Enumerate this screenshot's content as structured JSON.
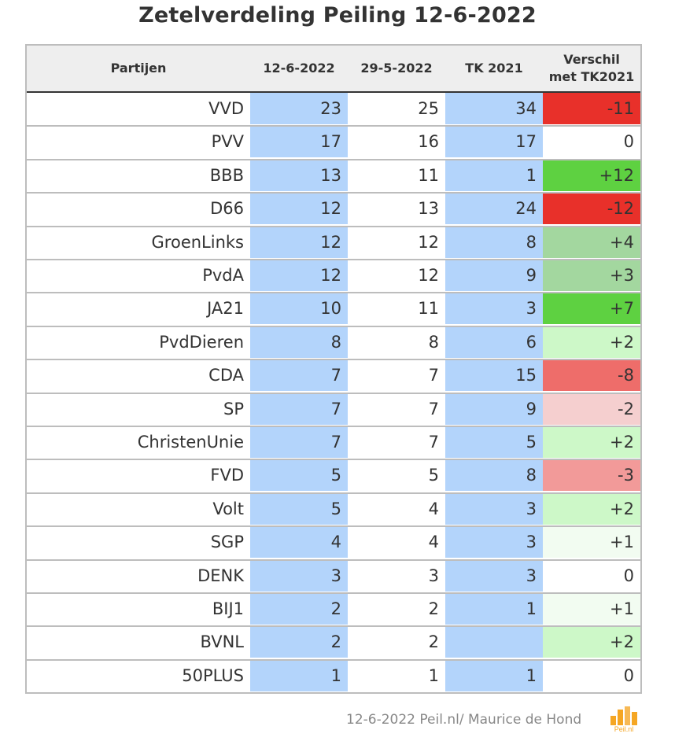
{
  "title": "Zetelverdeling Peiling 12-6-2022",
  "footer": "12-6-2022 Peil.nl/ Maurice de Hond",
  "logo": {
    "icon": "peil-nl-logo-icon",
    "text": "Peil.nl"
  },
  "colors": {
    "highlight_blue": "#b3d4fb",
    "header_bg": "#eeeeee",
    "diff_strong_red": "#e8302a",
    "diff_red": "#ee6d6a",
    "diff_mid_red": "#f29a99",
    "diff_light_red": "#f5cfcf",
    "diff_strong_green": "#5ed141",
    "diff_mid_green": "#a3d79f",
    "diff_light_green": "#cdf8c8",
    "diff_pale_green": "#f2fcf1",
    "diff_neutral": "#ffffff"
  },
  "chart_data": {
    "type": "table",
    "title": "Zetelverdeling Peiling 12-6-2022",
    "headers": {
      "party": "Partijen",
      "col1": "12-6-2022",
      "col2": "29-5-2022",
      "col3": "TK 2021",
      "diff_line1": "Verschil",
      "diff_line2": "met TK2021"
    },
    "rows": [
      {
        "party": "VVD",
        "p1": "23",
        "p2": "25",
        "tk": "34",
        "diff": "-11",
        "diff_color": "#e8302a"
      },
      {
        "party": "PVV",
        "p1": "17",
        "p2": "16",
        "tk": "17",
        "diff": "0",
        "diff_color": "#ffffff"
      },
      {
        "party": "BBB",
        "p1": "13",
        "p2": "11",
        "tk": "1",
        "diff": "+12",
        "diff_color": "#5ed141"
      },
      {
        "party": "D66",
        "p1": "12",
        "p2": "13",
        "tk": "24",
        "diff": "-12",
        "diff_color": "#e8302a"
      },
      {
        "party": "GroenLinks",
        "p1": "12",
        "p2": "12",
        "tk": "8",
        "diff": "+4",
        "diff_color": "#a3d79f"
      },
      {
        "party": "PvdA",
        "p1": "12",
        "p2": "12",
        "tk": "9",
        "diff": "+3",
        "diff_color": "#a3d79f"
      },
      {
        "party": "JA21",
        "p1": "10",
        "p2": "11",
        "tk": "3",
        "diff": "+7",
        "diff_color": "#5ed141"
      },
      {
        "party": "PvdDieren",
        "p1": "8",
        "p2": "8",
        "tk": "6",
        "diff": "+2",
        "diff_color": "#cdf8c8"
      },
      {
        "party": "CDA",
        "p1": "7",
        "p2": "7",
        "tk": "15",
        "diff": "-8",
        "diff_color": "#ee6d6a"
      },
      {
        "party": "SP",
        "p1": "7",
        "p2": "7",
        "tk": "9",
        "diff": "-2",
        "diff_color": "#f5cfcf"
      },
      {
        "party": "ChristenUnie",
        "p1": "7",
        "p2": "7",
        "tk": "5",
        "diff": "+2",
        "diff_color": "#cdf8c8"
      },
      {
        "party": "FVD",
        "p1": "5",
        "p2": "5",
        "tk": "8",
        "diff": "-3",
        "diff_color": "#f29a99"
      },
      {
        "party": "Volt",
        "p1": "5",
        "p2": "4",
        "tk": "3",
        "diff": "+2",
        "diff_color": "#cdf8c8"
      },
      {
        "party": "SGP",
        "p1": "4",
        "p2": "4",
        "tk": "3",
        "diff": "+1",
        "diff_color": "#f2fcf1"
      },
      {
        "party": "DENK",
        "p1": "3",
        "p2": "3",
        "tk": "3",
        "diff": "0",
        "diff_color": "#ffffff"
      },
      {
        "party": "BIJ1",
        "p1": "2",
        "p2": "2",
        "tk": "1",
        "diff": "+1",
        "diff_color": "#f2fcf1"
      },
      {
        "party": "BVNL",
        "p1": "2",
        "p2": "2",
        "tk": "",
        "diff": "+2",
        "diff_color": "#cdf8c8"
      },
      {
        "party": "50PLUS",
        "p1": "1",
        "p2": "1",
        "tk": "1",
        "diff": "0",
        "diff_color": "#ffffff"
      }
    ]
  }
}
